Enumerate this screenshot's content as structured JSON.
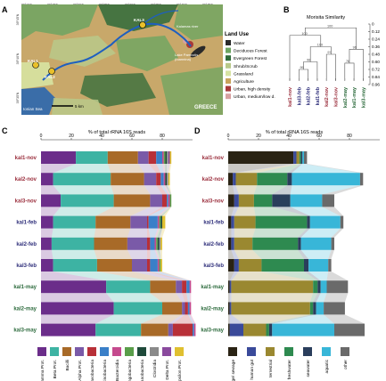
{
  "panels": {
    "a": {
      "letter": "A",
      "map_scale": "5 km",
      "sea_label": "Ionian Sea",
      "country_label": "GREECE",
      "lake_label": "Lake Pamvotis (Ioannina)",
      "lake_label_top": "Lake Pamvotis",
      "lake_label_bottom": "(Ioannina)",
      "kalamas_label": "Kalamas river",
      "lat_ticks": [
        "39°45'N",
        "39°40'N",
        "39°35'N"
      ],
      "lon_ticks": [
        "20°10'E",
        "20°15'E",
        "20°20'E",
        "20°25'E",
        "20°30'E",
        "20°35'E",
        "20°40'E",
        "20°45'E"
      ],
      "sites": [
        "KAL1",
        "KAL2",
        "KAL3"
      ],
      "legend_title": "Land Use",
      "legend": [
        {
          "label": "Water",
          "color": "#2a2a2a"
        },
        {
          "label": "Deciduous Forest",
          "color": "#6da562"
        },
        {
          "label": "Evergreen Forest",
          "color": "#2f6b3a"
        },
        {
          "label": "Shrub/Scrub",
          "color": "#b8c98a"
        },
        {
          "label": "Grassland",
          "color": "#d7e3a2"
        },
        {
          "label": "Agriculture",
          "color": "#c9a45c"
        },
        {
          "label": "Urban, high density",
          "color": "#a83a3a"
        },
        {
          "label": "Urban, medium/low d.",
          "color": "#d7a0a0"
        }
      ]
    },
    "b": {
      "letter": "B",
      "title": "Morisita Similarity",
      "axis_ticks": [
        "0",
        "0.12",
        "0.24",
        "0.36",
        "0.48",
        "0.60",
        "0.72",
        "0.84",
        "0.96"
      ],
      "leaves": [
        {
          "label": "kal1-nov",
          "color": "#9b2f3d"
        },
        {
          "label": "kal3-feb",
          "color": "#2e2e7a"
        },
        {
          "label": "kal2-feb",
          "color": "#2e2e7a"
        },
        {
          "label": "kal1-feb",
          "color": "#2e2e7a"
        },
        {
          "label": "kal2-nov",
          "color": "#9b2f3d"
        },
        {
          "label": "kal3-nov",
          "color": "#9b2f3d"
        },
        {
          "label": "kal2-may",
          "color": "#2d6b3d"
        },
        {
          "label": "kal1-may",
          "color": "#2d6b3d"
        },
        {
          "label": "kal3-may",
          "color": "#2d6b3d"
        }
      ],
      "bootstrap": [
        "99",
        "98",
        "97",
        "100",
        "100",
        "76",
        "96",
        "100",
        "100"
      ]
    },
    "c": {
      "letter": "C",
      "xlabel": "% of total rRNA 16S reads",
      "legend": [
        {
          "label": "Gamma Prot.",
          "color": "#6b2d8a"
        },
        {
          "label": "Beta Prot.",
          "color": "#3db3a3"
        },
        {
          "label": "Bacilli",
          "color": "#a86a28"
        },
        {
          "label": "Alpha Prot.",
          "color": "#7a5aa8"
        },
        {
          "label": "Flavobacteria",
          "color": "#b83038"
        },
        {
          "label": "Actinobacteria",
          "color": "#3a7fc8"
        },
        {
          "label": "Bacteroidia",
          "color": "#c54a8e"
        },
        {
          "label": "Sphingobacteria",
          "color": "#5a9e4a"
        },
        {
          "label": "Cyanobacteria",
          "color": "#1f4a3a"
        },
        {
          "label": "Clostridia",
          "color": "#8a8a8a"
        },
        {
          "label": "Delta Prot.",
          "color": "#8a4a9e"
        },
        {
          "label": "Epsilon Prot.",
          "color": "#e0c030"
        }
      ]
    },
    "d": {
      "letter": "D",
      "xlabel": "% of total rRNA 16S reads",
      "legend": [
        {
          "label": "sludge/ sewage",
          "color": "#2a2314"
        },
        {
          "label": "human gut",
          "color": "#3a4a9a"
        },
        {
          "label": "terrestrial",
          "color": "#9a8830"
        },
        {
          "label": "freshwater",
          "color": "#2e8a50"
        },
        {
          "label": "seawater",
          "color": "#2a3e5c"
        },
        {
          "label": "aquatic",
          "color": "#38b6d8"
        },
        {
          "label": "other",
          "color": "#6a6a6a"
        }
      ]
    }
  },
  "chart_data": [
    {
      "type": "bar",
      "title": "",
      "xlabel": "% of total rRNA 16S reads",
      "xlim": [
        0,
        100
      ],
      "xticks": [
        0,
        20,
        40,
        60,
        80
      ],
      "categories": [
        "kal1-nov",
        "kal2-nov",
        "kal3-nov",
        "kal1-feb",
        "kal2-feb",
        "kal3-feb",
        "kal1-may",
        "kal2-may",
        "kal3-may"
      ],
      "category_colors": [
        "#9b2f3d",
        "#9b2f3d",
        "#9b2f3d",
        "#2e2e7a",
        "#2e2e7a",
        "#2e2e7a",
        "#2d6b3d",
        "#2d6b3d",
        "#2d6b3d"
      ],
      "series": [
        {
          "name": "Gamma Prot.",
          "color": "#6b2d8a",
          "values": [
            23,
            8,
            13,
            8,
            7,
            8,
            43,
            48,
            36
          ]
        },
        {
          "name": "Beta Prot.",
          "color": "#3db3a3",
          "values": [
            21,
            38,
            35,
            28,
            28,
            29,
            29,
            32,
            30
          ]
        },
        {
          "name": "Bacilli",
          "color": "#a86a28",
          "values": [
            20,
            22,
            24,
            23,
            22,
            23,
            17,
            13,
            18
          ]
        },
        {
          "name": "Alpha Prot.",
          "color": "#7a5aa8",
          "values": [
            7,
            8,
            8,
            11,
            13,
            10,
            4,
            2,
            3
          ]
        },
        {
          "name": "Flavobacteria",
          "color": "#b83038",
          "values": [
            5,
            3,
            3,
            1,
            2,
            2,
            3,
            2,
            13
          ]
        },
        {
          "name": "Actinobacteria",
          "color": "#3a7fc8",
          "values": [
            4,
            2,
            1,
            6,
            3,
            5,
            2,
            1,
            1
          ]
        },
        {
          "name": "Bacteroidia",
          "color": "#c54a8e",
          "values": [
            1,
            1,
            1,
            1,
            1,
            1,
            1,
            1,
            1
          ]
        },
        {
          "name": "Sphingobacteria",
          "color": "#5a9e4a",
          "values": [
            1,
            0,
            1,
            1,
            1,
            1,
            0,
            0,
            0
          ]
        },
        {
          "name": "Cyanobacteria",
          "color": "#1f4a3a",
          "values": [
            1,
            1,
            0,
            1,
            1,
            0,
            0,
            0,
            0
          ]
        },
        {
          "name": "Clostridia",
          "color": "#8a8a8a",
          "values": [
            1,
            1,
            0,
            0,
            1,
            0,
            0,
            0,
            0
          ]
        },
        {
          "name": "Delta Prot.",
          "color": "#8a4a9e",
          "values": [
            1,
            0,
            0,
            0,
            0,
            0,
            0,
            0,
            0
          ]
        },
        {
          "name": "Epsilon Prot.",
          "color": "#e0c030",
          "values": [
            1,
            1,
            0,
            2,
            1,
            1,
            0,
            0,
            0
          ]
        }
      ]
    },
    {
      "type": "bar",
      "title": "",
      "xlabel": "% of total rRNA 16S reads",
      "xlim": [
        0,
        100
      ],
      "xticks": [
        0,
        20,
        40,
        60,
        80
      ],
      "categories": [
        "kal1-nov",
        "kal2-nov",
        "kal3-nov",
        "kal1-feb",
        "kal2-feb",
        "kal3-feb",
        "kal1-may",
        "kal2-may",
        "kal3-may"
      ],
      "category_colors": [
        "#9b2f3d",
        "#9b2f3d",
        "#9b2f3d",
        "#2e2e7a",
        "#2e2e7a",
        "#2e2e7a",
        "#2d6b3d",
        "#2d6b3d",
        "#2d6b3d"
      ],
      "series": [
        {
          "name": "sludge/ sewage",
          "color": "#2a2314",
          "values": [
            43,
            3,
            4,
            2,
            2,
            4,
            1,
            1,
            1
          ]
        },
        {
          "name": "human gut",
          "color": "#3a4a9a",
          "values": [
            2,
            2,
            3,
            2,
            2,
            3,
            1,
            1,
            9
          ]
        },
        {
          "name": "terrestrial",
          "color": "#9a8830",
          "values": [
            2,
            14,
            10,
            14,
            12,
            15,
            54,
            52,
            15
          ]
        },
        {
          "name": "freshwater",
          "color": "#2e8a50",
          "values": [
            1,
            20,
            12,
            34,
            30,
            28,
            3,
            2,
            2
          ]
        },
        {
          "name": "seawater",
          "color": "#2a3e5c",
          "values": [
            1,
            3,
            12,
            2,
            2,
            3,
            2,
            2,
            2
          ]
        },
        {
          "name": "aquatic",
          "color": "#38b6d8",
          "values": [
            1,
            45,
            21,
            20,
            20,
            13,
            4,
            5,
            41
          ]
        },
        {
          "name": "other",
          "color": "#6a6a6a",
          "values": [
            2,
            2,
            8,
            2,
            2,
            2,
            14,
            14,
            20
          ]
        }
      ]
    }
  ]
}
